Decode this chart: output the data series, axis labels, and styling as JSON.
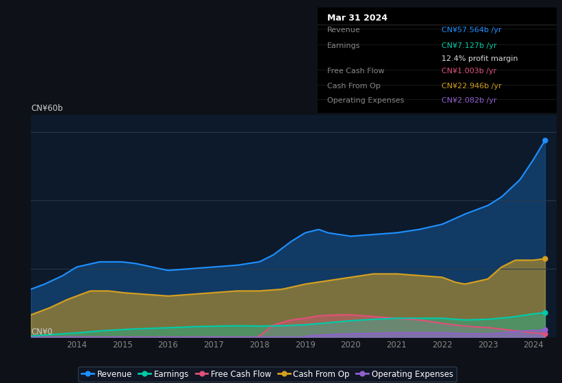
{
  "background_color": "#0e1117",
  "plot_bg_color": "#0d1a2b",
  "line_colors": {
    "revenue": "#1e90ff",
    "earnings": "#00cba9",
    "free_cash_flow": "#e0507a",
    "cash_from_op": "#d4a020",
    "operating_expenses": "#9060d0"
  },
  "tooltip": {
    "date": "Mar 31 2024",
    "revenue_label": "Revenue",
    "revenue_val": "CN¥57.564b /yr",
    "earnings_label": "Earnings",
    "earnings_val": "CN¥7.127b /yr",
    "profit_margin": "12.4% profit margin",
    "fcf_label": "Free Cash Flow",
    "fcf_val": "CN¥1.003b /yr",
    "cop_label": "Cash From Op",
    "cop_val": "CN¥22.946b /yr",
    "oe_label": "Operating Expenses",
    "oe_val": "CN¥2.082b /yr"
  },
  "ylabel_top": "CN¥60b",
  "ylabel_bottom": "CN¥0",
  "ylim": [
    0,
    65
  ],
  "xlim": [
    2013.0,
    2024.5
  ],
  "xtick_years": [
    2014,
    2015,
    2016,
    2017,
    2018,
    2019,
    2020,
    2021,
    2022,
    2023,
    2024
  ],
  "grid_yvals": [
    20,
    40,
    60
  ],
  "legend_labels": [
    "Revenue",
    "Earnings",
    "Free Cash Flow",
    "Cash From Op",
    "Operating Expenses"
  ]
}
